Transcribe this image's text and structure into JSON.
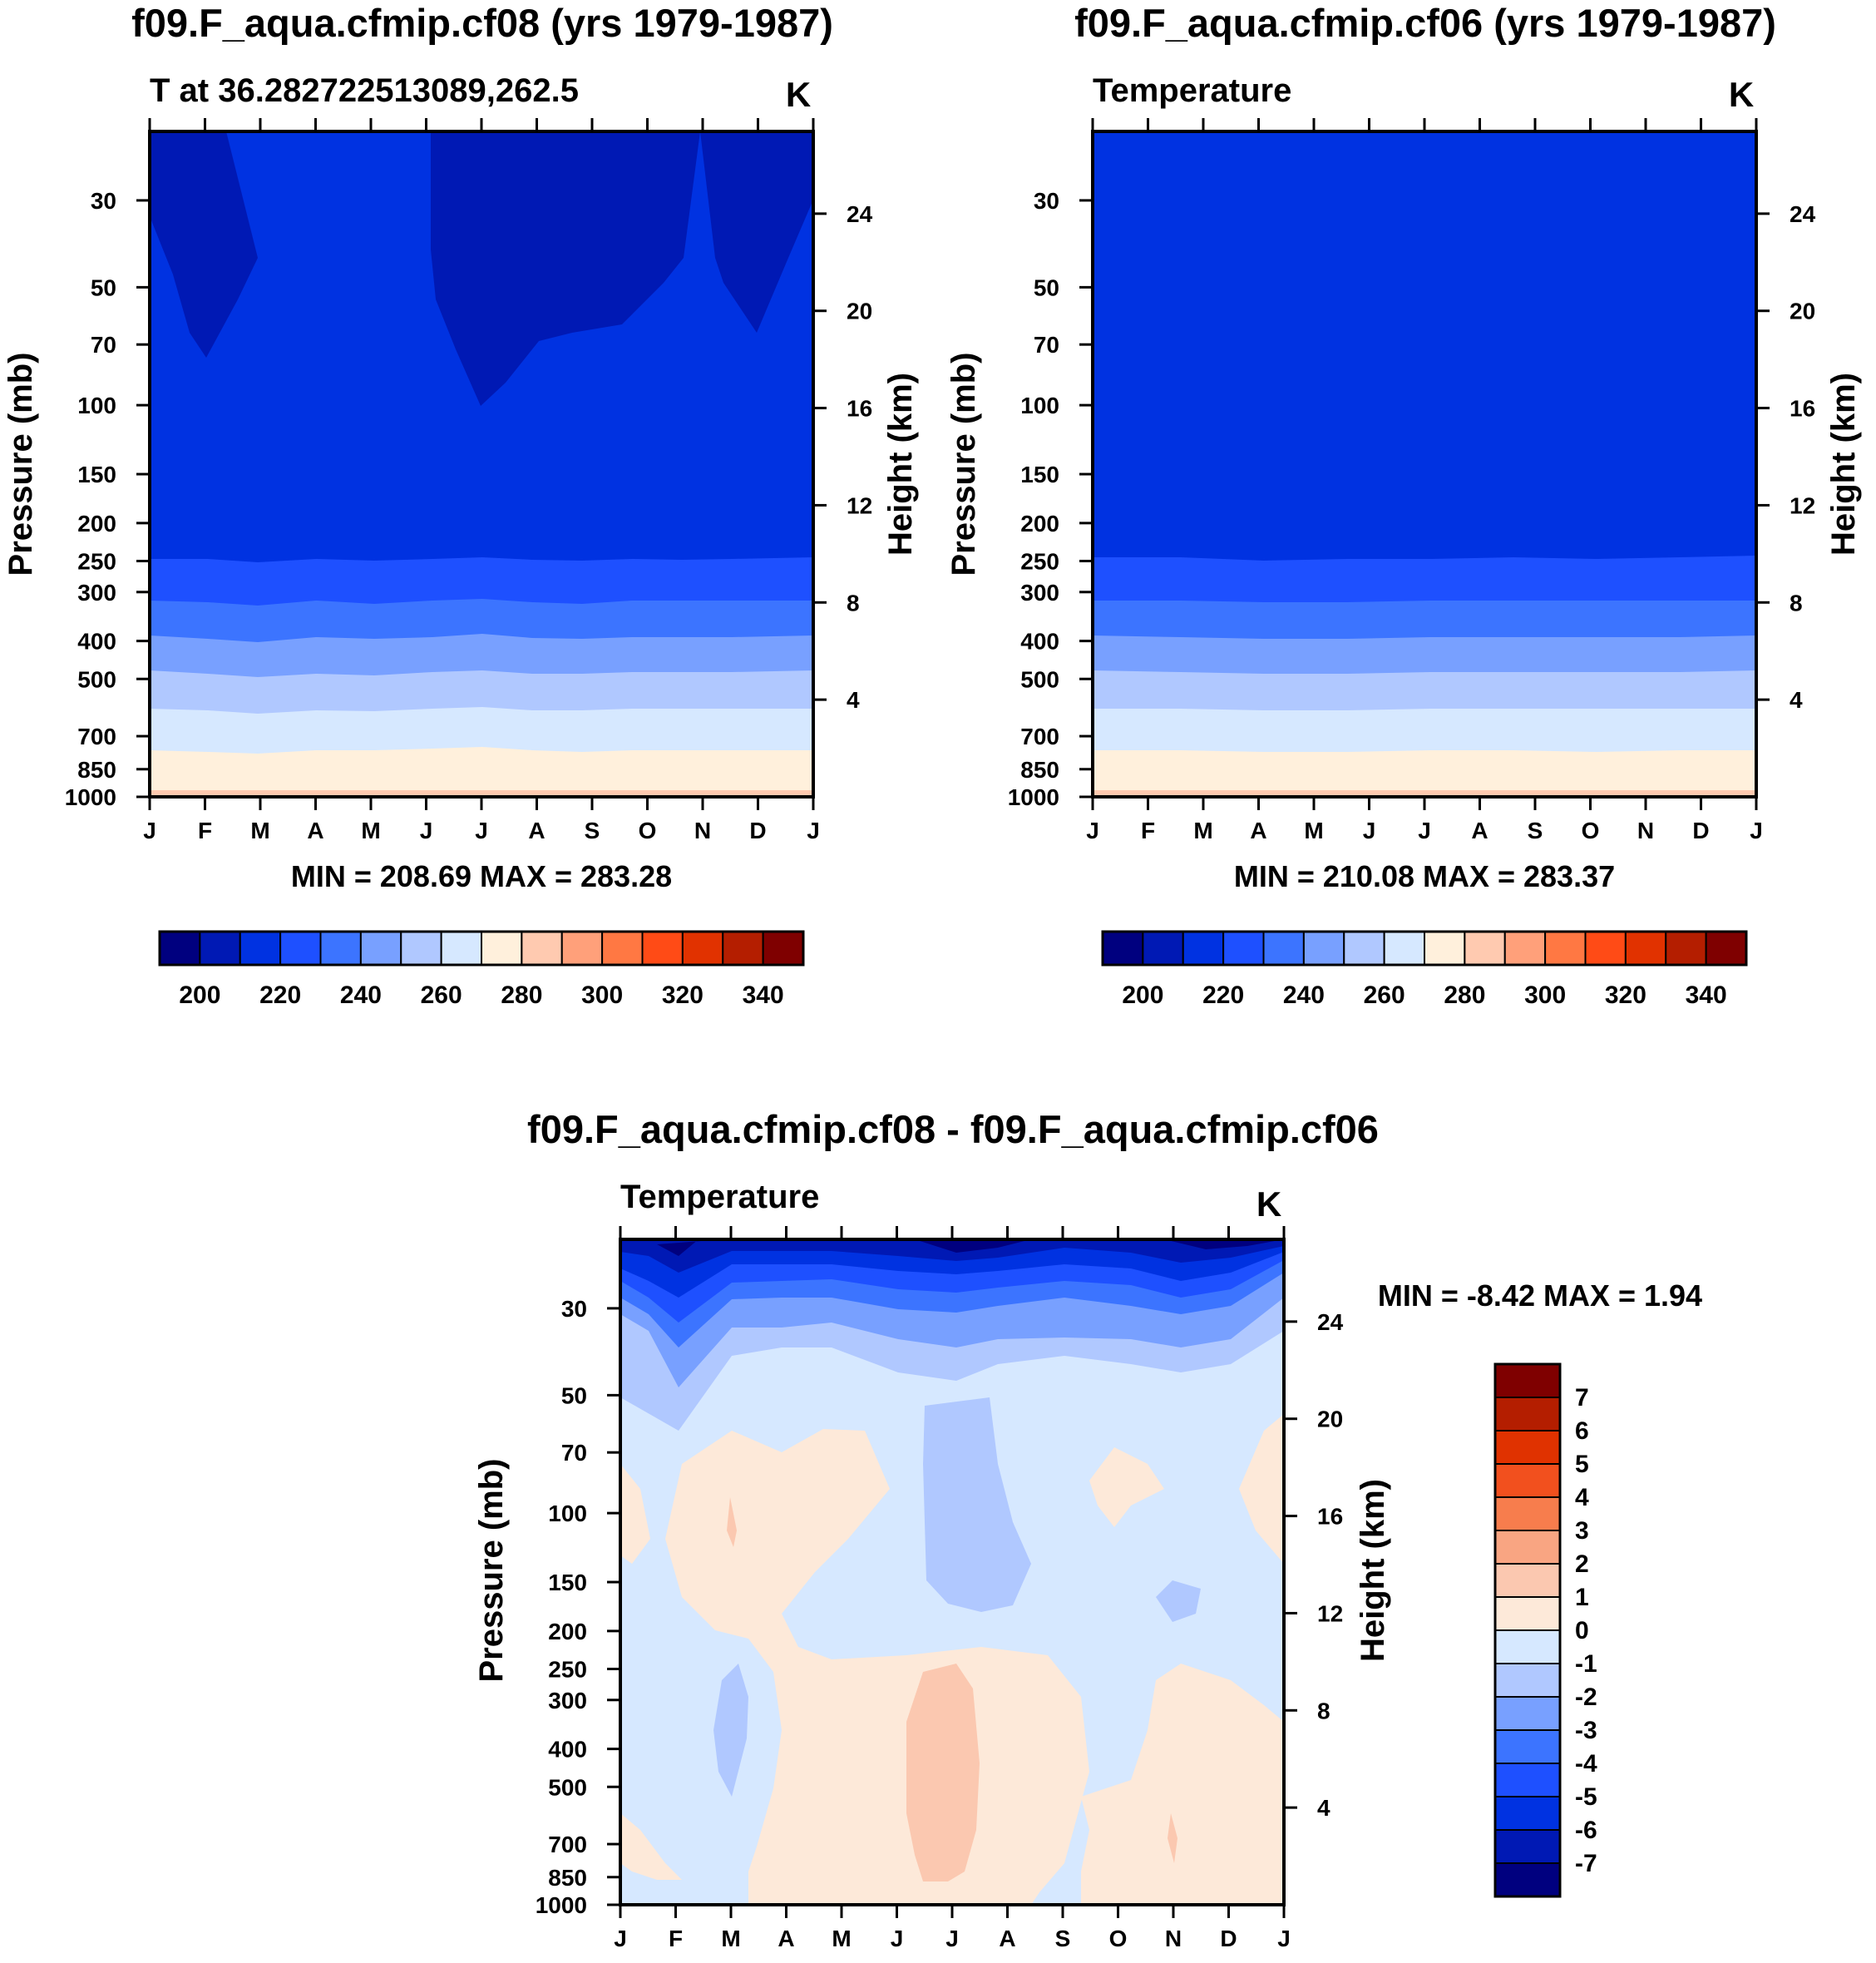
{
  "colors": {
    "abs_scale": [
      "#00007f",
      "#0019b4",
      "#0032e1",
      "#1e50ff",
      "#3c74ff",
      "#78a0ff",
      "#b0c8ff",
      "#d6e8ff",
      "#fff0dc",
      "#ffcab0",
      "#ffa07a",
      "#ff7843",
      "#ff4b16",
      "#e13200",
      "#b41e00",
      "#7f0000"
    ],
    "diff_scale": [
      "#00007f",
      "#0019b4",
      "#0032e1",
      "#1e50ff",
      "#3c74ff",
      "#78a0ff",
      "#b0c8ff",
      "#d6e8ff",
      "#fde9d9",
      "#fbc8b0",
      "#f9a582",
      "#f77d4d",
      "#f2501e",
      "#e03200",
      "#b41e00",
      "#7f0000"
    ]
  },
  "chart_data": [
    {
      "type": "heatmap",
      "title": "f09.F_aqua.cfmip.cf08 (yrs 1979-1987)",
      "subtitle_left": "T at 36.282722513089,262.5",
      "units": "K",
      "xlabel": "",
      "ylabel": "Pressure (mb)",
      "ylabel_right": "Height (km)",
      "x_ticks": [
        "J",
        "F",
        "M",
        "A",
        "M",
        "J",
        "J",
        "A",
        "S",
        "O",
        "N",
        "D",
        "J"
      ],
      "y_ticks": [
        "30",
        "50",
        "70",
        "100",
        "150",
        "200",
        "250",
        "300",
        "400",
        "500",
        "700",
        "850",
        "1000"
      ],
      "y_ticks_right": [
        "24",
        "20",
        "16",
        "12",
        "8",
        "4"
      ],
      "ylim": [
        1000,
        20
      ],
      "minmax": "MIN = 208.69 MAX = 283.28",
      "min": 208.69,
      "max": 283.28,
      "levels_text": [
        "200",
        "220",
        "240",
        "260",
        "280",
        "300",
        "320",
        "340"
      ],
      "levels": [
        200,
        210,
        220,
        230,
        240,
        250,
        260,
        270,
        280,
        290,
        300,
        310,
        320,
        330,
        340
      ],
      "layers": [
        {
          "pressure": 1000,
          "value_range": [
            280,
            290
          ]
        },
        {
          "pressure": 850,
          "value_range": [
            270,
            280
          ]
        },
        {
          "pressure": 700,
          "value_range": [
            260,
            270
          ]
        },
        {
          "pressure": 500,
          "value_range": [
            250,
            260
          ]
        },
        {
          "pressure": 400,
          "value_range": [
            240,
            250
          ]
        },
        {
          "pressure": 300,
          "value_range": [
            230,
            240
          ]
        },
        {
          "pressure": 200,
          "value_range": [
            220,
            230
          ]
        },
        {
          "pressure": 50,
          "value_range": [
            210,
            220
          ]
        }
      ]
    },
    {
      "type": "heatmap",
      "title": "f09.F_aqua.cfmip.cf06 (yrs 1979-1987)",
      "subtitle_left": "Temperature",
      "units": "K",
      "ylabel": "Pressure (mb)",
      "ylabel_right": "Height (km)",
      "x_ticks": [
        "J",
        "F",
        "M",
        "A",
        "M",
        "J",
        "J",
        "A",
        "S",
        "O",
        "N",
        "D",
        "J"
      ],
      "y_ticks": [
        "30",
        "50",
        "70",
        "100",
        "150",
        "200",
        "250",
        "300",
        "400",
        "500",
        "700",
        "850",
        "1000"
      ],
      "y_ticks_right": [
        "24",
        "20",
        "16",
        "12",
        "8",
        "4"
      ],
      "ylim": [
        1000,
        20
      ],
      "minmax": "MIN = 210.08 MAX = 283.37",
      "min": 210.08,
      "max": 283.37,
      "levels_text": [
        "200",
        "220",
        "240",
        "260",
        "280",
        "300",
        "320",
        "340"
      ],
      "levels": [
        200,
        210,
        220,
        230,
        240,
        250,
        260,
        270,
        280,
        290,
        300,
        310,
        320,
        330,
        340
      ]
    },
    {
      "type": "heatmap",
      "title": "f09.F_aqua.cfmip.cf08 - f09.F_aqua.cfmip.cf06",
      "subtitle_left": "Temperature",
      "units": "K",
      "ylabel": "Pressure (mb)",
      "ylabel_right": "Height (km)",
      "x_ticks": [
        "J",
        "F",
        "M",
        "A",
        "M",
        "J",
        "J",
        "A",
        "S",
        "O",
        "N",
        "D",
        "J"
      ],
      "y_ticks": [
        "30",
        "50",
        "70",
        "100",
        "150",
        "200",
        "250",
        "300",
        "400",
        "500",
        "700",
        "850",
        "1000"
      ],
      "y_ticks_right": [
        "24",
        "20",
        "16",
        "12",
        "8",
        "4"
      ],
      "ylim": [
        1000,
        20
      ],
      "minmax": "MIN =  -8.42 MAX =   1.94",
      "min": -8.42,
      "max": 1.94,
      "levels_text": [
        "7",
        "6",
        "5",
        "4",
        "3",
        "2",
        "1",
        "0",
        "-1",
        "-2",
        "-3",
        "-4",
        "-5",
        "-6",
        "-7"
      ],
      "levels": [
        7,
        6,
        5,
        4,
        3,
        2,
        1,
        0,
        -1,
        -2,
        -3,
        -4,
        -5,
        -6,
        -7
      ]
    }
  ]
}
